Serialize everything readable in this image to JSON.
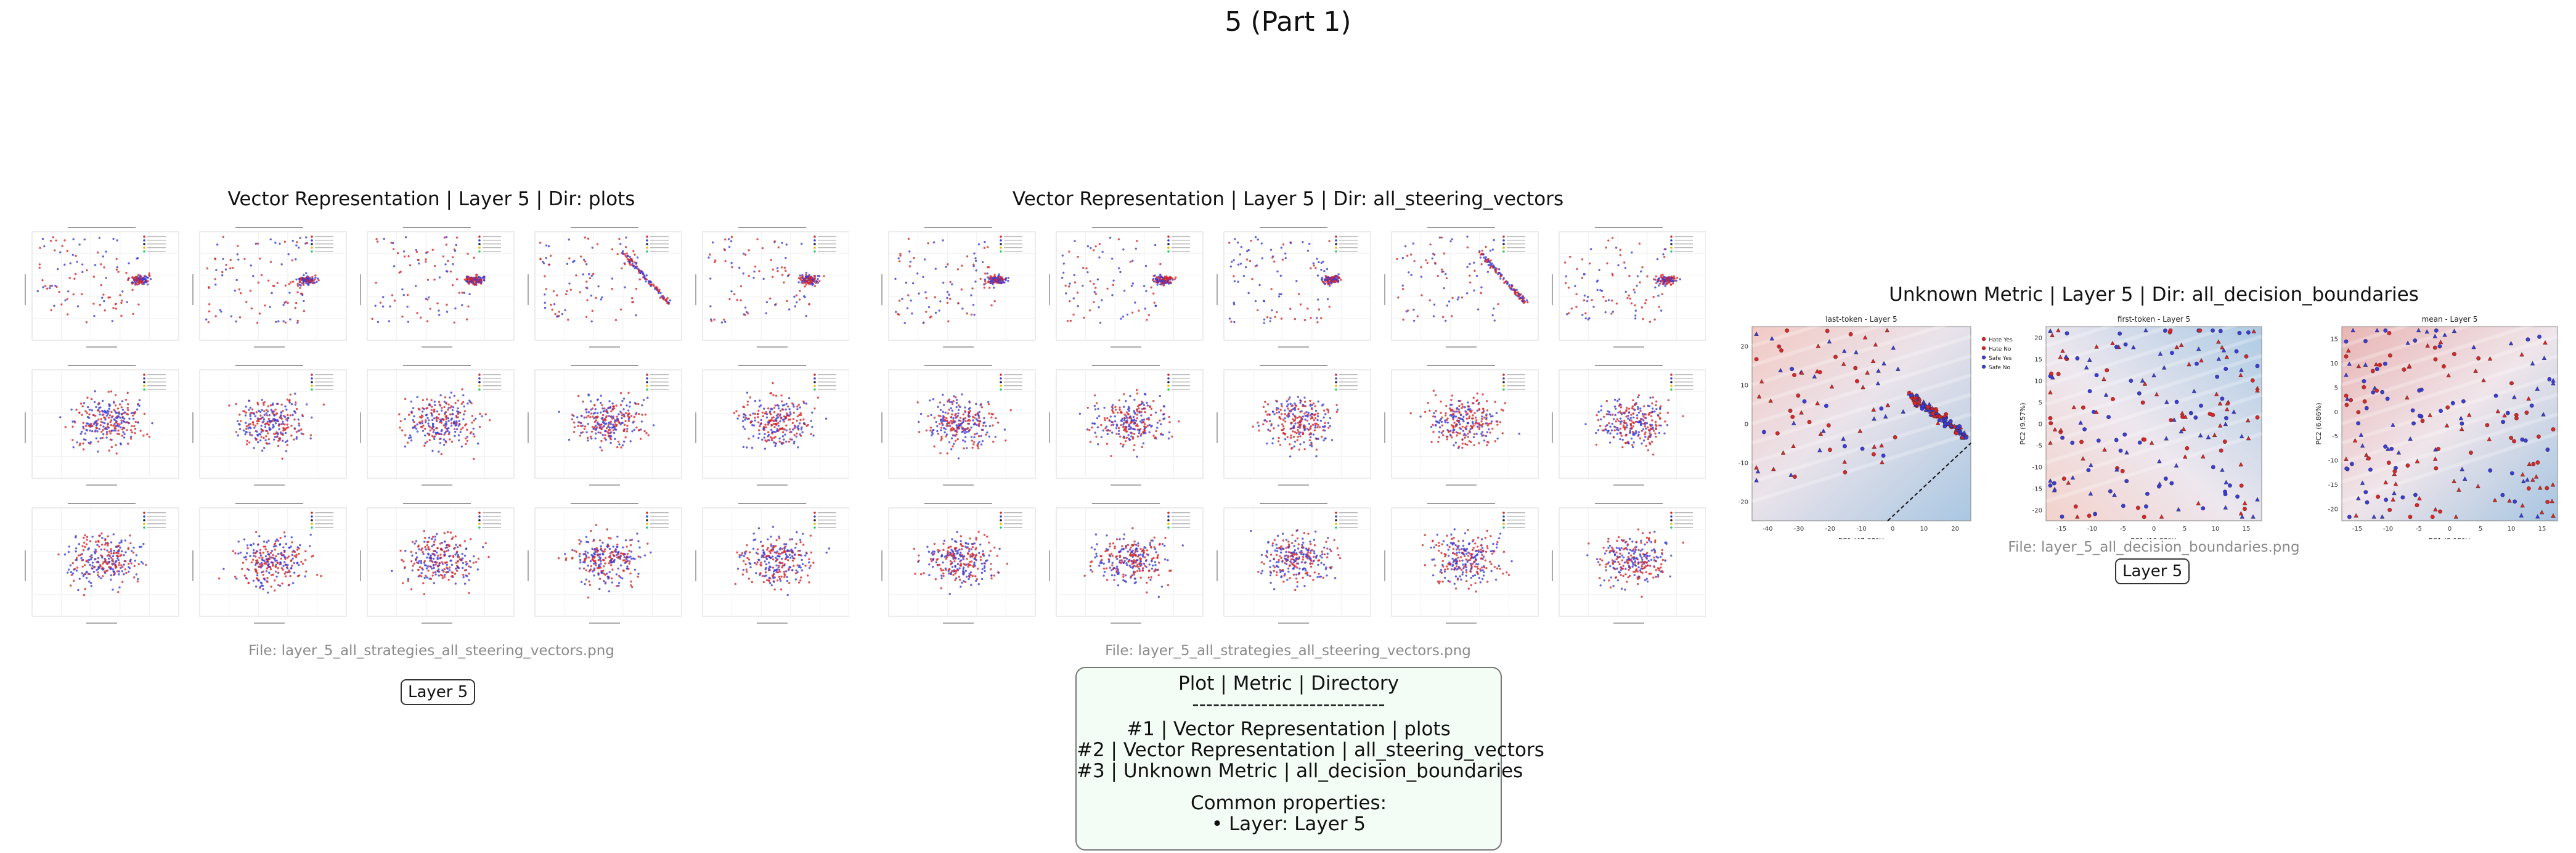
{
  "title": "5 (Part 1)",
  "panels": [
    {
      "title": "Vector Representation | Layer 5 | Dir: plots",
      "file": "File: layer_5_all_strategies_all_steering_vectors.png",
      "badge": "Layer 5"
    },
    {
      "title": "Vector Representation | Layer 5 | Dir: all_steering_vectors",
      "file": "File: layer_5_all_strategies_all_steering_vectors.png"
    },
    {
      "title": "Unknown Metric | Layer 5 | Dir: all_decision_boundaries",
      "file": "File: layer_5_all_decision_boundaries.png",
      "badge": "Layer 5",
      "subplots": [
        {
          "title": "last-token - Layer 5",
          "xlabel": "PC1 (47.68%)",
          "ylabel": "PC2 (5.68%)",
          "xticks": [
            "-40",
            "-30",
            "-20",
            "-10",
            "0",
            "10",
            "20"
          ],
          "yticks": [
            "20",
            "10",
            "0",
            "-10",
            "-20"
          ],
          "legend": [
            "Hate Yes",
            "Hate No",
            "Safe Yes",
            "Safe No"
          ]
        },
        {
          "title": "first-token - Layer 5",
          "xlabel": "PC1 (10.82%)",
          "ylabel": "PC2 (9.57%)",
          "xticks": [
            "-15",
            "-10",
            "-5",
            "0",
            "5",
            "10",
            "15"
          ],
          "yticks": [
            "20",
            "15",
            "10",
            "5",
            "0",
            "-5",
            "-10",
            "-15",
            "-20"
          ]
        },
        {
          "title": "mean - Layer 5",
          "xlabel": "PC1 (8.15%)",
          "ylabel": "PC2 (6.86%)",
          "xticks": [
            "-15",
            "-10",
            "-5",
            "0",
            "5",
            "10",
            "15"
          ],
          "yticks": [
            "15",
            "10",
            "5",
            "0",
            "-5",
            "-10",
            "-15",
            "-20"
          ]
        }
      ]
    }
  ],
  "legend": {
    "header": "Plot | Metric | Directory",
    "separator": "----------------------------",
    "rows": [
      "#1 | Vector Representation | plots",
      "#2 | Vector Representation | all_steering_vectors",
      "#3 | Unknown Metric | all_decision_boundaries"
    ],
    "common_label": "Common properties:",
    "common_value": "• Layer: Layer 5"
  },
  "colors": {
    "red_series": "#d62728",
    "blue_series": "#3b3bd6",
    "dark_series": "#1a1a4a",
    "legend_bg": "#f4fcf6"
  }
}
